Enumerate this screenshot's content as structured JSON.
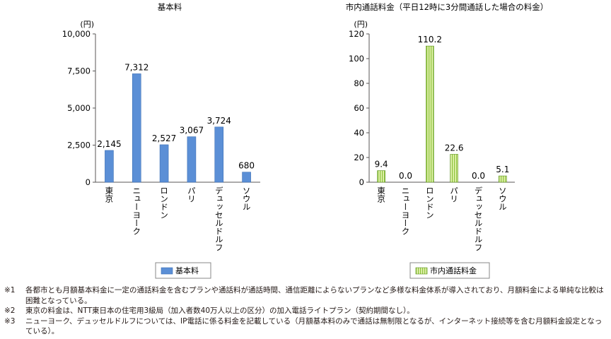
{
  "chart_data": [
    {
      "type": "bar",
      "title": "基本料",
      "unit": "(円)",
      "categories": [
        "東京",
        "ニューヨーク",
        "ロンドン",
        "パリ",
        "デュッセルドルフ",
        "ソウル"
      ],
      "series": [
        {
          "name": "基本料",
          "values": [
            2145,
            7312,
            2527,
            3067,
            3724,
            680
          ]
        }
      ],
      "value_labels": [
        "2,145",
        "7,312",
        "2,527",
        "3,067",
        "3,724",
        "680"
      ],
      "ylim": [
        0,
        10000
      ],
      "yticks": [
        0,
        2500,
        5000,
        7500,
        10000
      ],
      "ytick_labels": [
        "0",
        "2,500",
        "5,000",
        "7,500",
        "10,000"
      ],
      "color": "#5b8fd6",
      "pattern": "solid",
      "legend_position": "bottom"
    },
    {
      "type": "bar",
      "title": "市内通話料金（平日12時に3分間通話した場合の料金）",
      "unit": "(円)",
      "categories": [
        "東京",
        "ニューヨーク",
        "ロンドン",
        "パリ",
        "デュッセルドルフ",
        "ソウル"
      ],
      "series": [
        {
          "name": "市内通話料金",
          "values": [
            9.4,
            0.0,
            110.2,
            22.6,
            0.0,
            5.1
          ]
        }
      ],
      "value_labels": [
        "9.4",
        "0.0",
        "110.2",
        "22.6",
        "0.0",
        "5.1"
      ],
      "ylim": [
        0,
        120
      ],
      "yticks": [
        0,
        20,
        40,
        60,
        80,
        100,
        120
      ],
      "ytick_labels": [
        "0",
        "20",
        "40",
        "60",
        "80",
        "100",
        "120"
      ],
      "color": "#c6e27a",
      "pattern": "vertical-stripes",
      "legend_position": "bottom"
    }
  ],
  "notes": [
    {
      "mark": "※1",
      "text": "各都市とも月額基本料金に一定の通話料金を含むプランや通話料が通話時間、通信距離によらないプランなど多様な料金体系が導入されており、月額料金による単純な比較は困難となっている。"
    },
    {
      "mark": "※2",
      "text": "東京の料金は、NTT東日本の住宅用3級局（加入者数40万人以上の区分）の加入電話ライトプラン（契約期間なし）。"
    },
    {
      "mark": "※3",
      "text": "ニューヨーク、デュッセルドルフについては、IP電話に係る料金を記載している（月額基本料のみで通話は無制限となるが、インターネット接続等を含む月額料金設定となっている）。"
    }
  ]
}
